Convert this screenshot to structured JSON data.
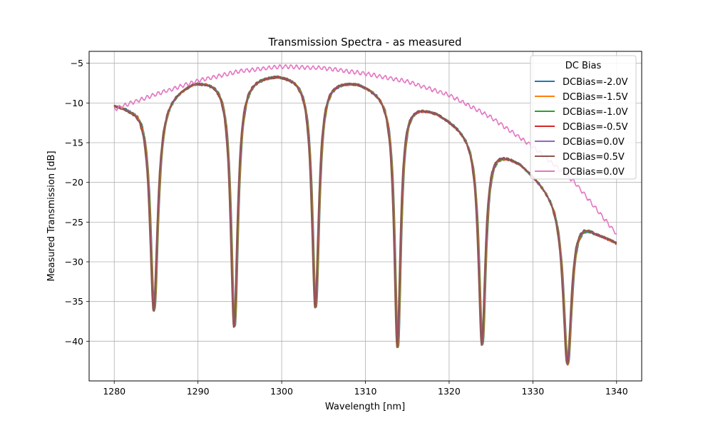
{
  "chart_data": {
    "type": "line",
    "title": "Transmission Spectra - as measured",
    "xlabel": "Wavelength [nm]",
    "ylabel": "Measured Transmission [dB]",
    "xlim": [
      1277.0,
      1343.0
    ],
    "ylim": [
      -45.0,
      -3.5
    ],
    "xticks": [
      1280,
      1290,
      1300,
      1310,
      1320,
      1330,
      1340
    ],
    "yticks": [
      -40,
      -35,
      -30,
      -25,
      -20,
      -15,
      -10,
      -5
    ],
    "grid": true,
    "legend": {
      "title": "DC Bias",
      "placement": "top-right"
    },
    "x_range": [
      1280,
      1340
    ],
    "series": [
      {
        "name": "DCBias=-2.0V",
        "color": "#1f77b4",
        "kind": "ring",
        "shift": 0.15
      },
      {
        "name": "DCBias=-1.5V",
        "color": "#ff7f0e",
        "kind": "ring",
        "shift": 0.12
      },
      {
        "name": "DCBias=-1.0V",
        "color": "#2ca02c",
        "kind": "ring",
        "shift": 0.08
      },
      {
        "name": "DCBias=-0.5V",
        "color": "#d62728",
        "kind": "ring",
        "shift": 0.04
      },
      {
        "name": "DCBias=0.0V",
        "color": "#9467bd",
        "kind": "ring",
        "shift": 0.0
      },
      {
        "name": "DCBias=0.5V",
        "color": "#8c564b",
        "kind": "ring",
        "shift": -0.04
      },
      {
        "name": "DCBias=0.0V",
        "color": "#e377c2",
        "kind": "envelope",
        "shift": 0.0
      }
    ],
    "envelope_points": [
      [
        1280,
        -10.8
      ],
      [
        1282,
        -10.0
      ],
      [
        1285,
        -8.9
      ],
      [
        1290,
        -7.2
      ],
      [
        1295,
        -6.0
      ],
      [
        1300,
        -5.4
      ],
      [
        1305,
        -5.6
      ],
      [
        1310,
        -6.3
      ],
      [
        1315,
        -7.3
      ],
      [
        1320,
        -9.0
      ],
      [
        1325,
        -11.8
      ],
      [
        1330,
        -15.5
      ],
      [
        1335,
        -20.0
      ],
      [
        1340,
        -26.5
      ]
    ],
    "peak_points": [
      [
        1280,
        -10.0
      ],
      [
        1282,
        -10.2
      ],
      [
        1285,
        -9.2
      ],
      [
        1289.5,
        -6.9
      ],
      [
        1299.5,
        -6.0
      ],
      [
        1309,
        -7.0
      ],
      [
        1318.5,
        -10.8
      ],
      [
        1328.5,
        -17.2
      ],
      [
        1337.5,
        -26.0
      ],
      [
        1340,
        -27.5
      ]
    ],
    "resonance_dips": [
      {
        "center": 1284.7,
        "depth": -36.0,
        "width": 0.55
      },
      {
        "center": 1294.3,
        "depth": -38.0,
        "width": 0.5
      },
      {
        "center": 1304.0,
        "depth": -35.5,
        "width": 0.5
      },
      {
        "center": 1313.8,
        "depth": -40.5,
        "width": 0.45
      },
      {
        "center": 1323.9,
        "depth": -40.2,
        "width": 0.5
      },
      {
        "center": 1334.1,
        "depth": -42.8,
        "width": 0.6
      }
    ]
  }
}
